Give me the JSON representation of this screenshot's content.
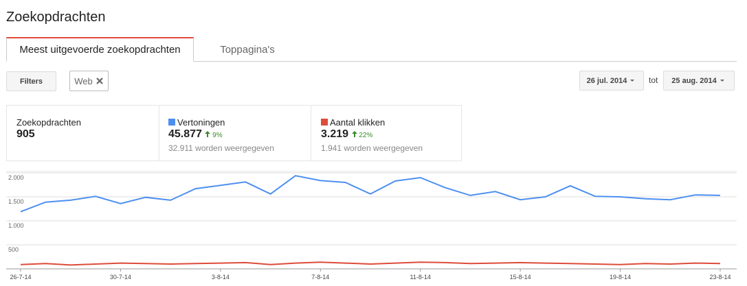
{
  "header": {
    "title": "Zoekopdrachten"
  },
  "tabs": [
    "Meest uitgevoerde zoekopdrachten",
    "Toppagina's"
  ],
  "filters": {
    "button": "Filters",
    "chip": "Web"
  },
  "date_range": {
    "start": "26 jul. 2014",
    "separator": "tot",
    "end": "25 aug. 2014"
  },
  "stats": [
    {
      "label": "Zoekopdrachten",
      "value": "905"
    },
    {
      "value": "45.877",
      "change": "9%",
      "note": "32.911 worden weergegeven"
    },
    {
      "value": "3.219",
      "change": "22%",
      "note": "1.941 worden weergegeven"
    }
  ],
  "chart_data": {
    "type": "line",
    "categories": [
      "26-7-14",
      null,
      null,
      null,
      "30-7-14",
      null,
      null,
      null,
      "3-8-14",
      null,
      null,
      null,
      "7-8-14",
      null,
      null,
      null,
      "11-8-14",
      null,
      null,
      null,
      "15-8-14",
      null,
      null,
      null,
      "19-8-14",
      null,
      null,
      null,
      "23-8-14"
    ],
    "series": [
      {
        "name": "Vertoningen",
        "color": "#4d8ff0",
        "values": [
          1190,
          1390,
          1430,
          1510,
          1360,
          1490,
          1430,
          1670,
          1740,
          1810,
          1560,
          1940,
          1840,
          1800,
          1560,
          1830,
          1900,
          1690,
          1530,
          1610,
          1440,
          1500,
          1730,
          1510,
          1500,
          1460,
          1440,
          1540,
          1530
        ]
      },
      {
        "name": "Aantal klikken",
        "color": "#dd4b39",
        "values": [
          90,
          110,
          80,
          100,
          120,
          110,
          100,
          110,
          120,
          130,
          90,
          120,
          140,
          120,
          100,
          120,
          140,
          130,
          110,
          120,
          130,
          120,
          110,
          100,
          90,
          110,
          100,
          120,
          110
        ]
      }
    ],
    "ylim": [
      0,
      2000
    ],
    "yticks": [
      {
        "value": 500,
        "label": "500"
      },
      {
        "value": 1000,
        "label": "1.000"
      },
      {
        "value": 1500,
        "label": "1.500"
      },
      {
        "value": 2000,
        "label": "2.000"
      }
    ],
    "grid": true
  }
}
